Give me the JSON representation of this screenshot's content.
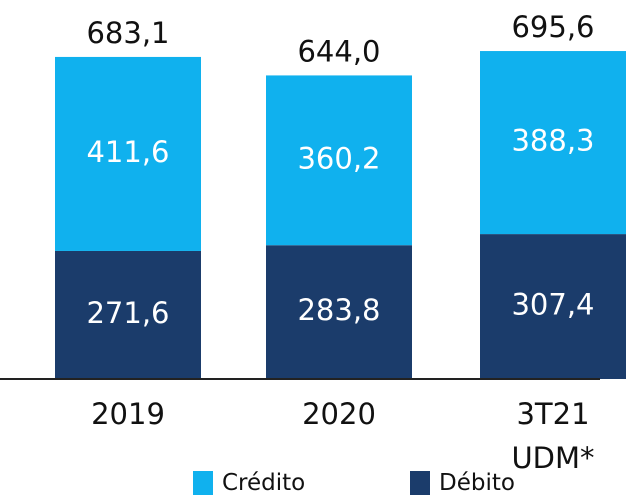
{
  "chart_data": {
    "type": "stacked_bar",
    "categories": [
      "2019",
      "2020",
      "3T21 UDM*"
    ],
    "series": [
      {
        "name": "Crédito",
        "color": "#10b1ee",
        "values": [
          411.6,
          360.2,
          388.3
        ],
        "value_labels": [
          "411,6",
          "360,2",
          "388,3"
        ]
      },
      {
        "name": "Débito",
        "color": "#1b3c6b",
        "values": [
          271.6,
          283.8,
          307.4
        ],
        "value_labels": [
          "271,6",
          "283,8",
          "307,4"
        ]
      }
    ],
    "totals": [
      683.1,
      644.0,
      695.6
    ],
    "total_labels": [
      "683,1",
      "644,0",
      "695,6"
    ]
  }
}
